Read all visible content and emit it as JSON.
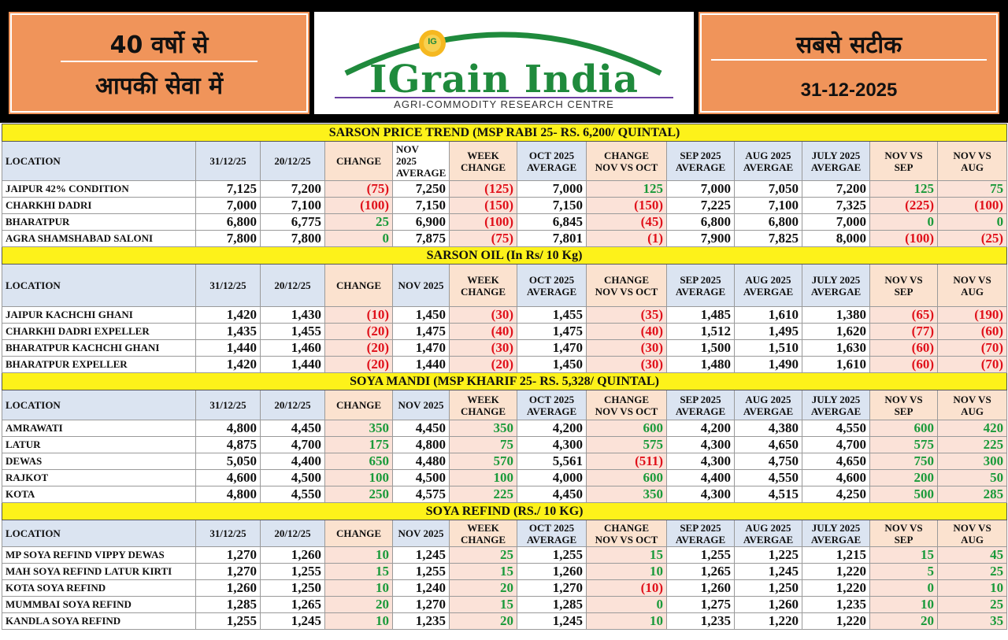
{
  "header": {
    "left_line1": "40 वर्षो से",
    "left_line2": "आपकी सेवा में",
    "brand": "IGrain India",
    "brand_subtitle": "AGRI-COMMODITY RESEARCH CENTRE",
    "logo_badge": "IG",
    "right_tagline": "सबसे सटीक",
    "date": "31-12-2025"
  },
  "colors": {
    "orange_panel": "#f0945a",
    "title_yellow": "#fdf21a",
    "header_blue": "#dbe4f1",
    "change_pink": "#fbe2d8",
    "positive_green": "#1a9a3a",
    "negative_red": "#e0101a",
    "brand_green": "#1f8a3c"
  },
  "sections": [
    {
      "title": "SARSON PRICE TREND (MSP RABI 25- RS. 6,200/ QUINTAL)",
      "headers": [
        "LOCATION",
        "31/12/25",
        "20/12/25",
        "CHANGE",
        "NOV\n2025\nAVERAGE",
        "WEEK\nCHANGE",
        "OCT 2025\nAVERAGE",
        "CHANGE\nNOV VS OCT",
        "SEP 2025\nAVERAGE",
        "AUG 2025\nAVERGAE",
        "JULY 2025\nAVERGAE",
        "NOV VS\nSEP",
        "NOV VS\nAUG"
      ],
      "rows": [
        [
          "JAIPUR 42% CONDITION",
          "7,125",
          "7,200",
          "(75)",
          "7,250",
          "(125)",
          "7,000",
          "125",
          "7,000",
          "7,050",
          "7,200",
          "125",
          "75"
        ],
        [
          "CHARKHI DADRI",
          "7,000",
          "7,100",
          "(100)",
          "7,150",
          "(150)",
          "7,150",
          "(150)",
          "7,225",
          "7,100",
          "7,325",
          "(225)",
          "(100)"
        ],
        [
          "BHARATPUR",
          "6,800",
          "6,775",
          "25",
          "6,900",
          "(100)",
          "6,845",
          "(45)",
          "6,800",
          "6,800",
          "7,000",
          "0",
          "0"
        ],
        [
          "AGRA SHAMSHABAD SALONI",
          "7,800",
          "7,800",
          "0",
          "7,875",
          "(75)",
          "7,801",
          "(1)",
          "7,900",
          "7,825",
          "8,000",
          "(100)",
          "(25)"
        ]
      ]
    },
    {
      "title": "SARSON OIL (In Rs/ 10 Kg)",
      "headers": [
        "LOCATION",
        "31/12/25",
        "20/12/25",
        "CHANGE",
        "NOV 2025",
        "WEEK\nCHANGE",
        "OCT 2025\nAVERAGE",
        "CHANGE\nNOV VS OCT",
        "SEP 2025\nAVERAGE",
        "AUG 2025\nAVERGAE",
        "JULY 2025\nAVERGAE",
        "NOV VS\nSEP",
        "NOV VS\nAUG"
      ],
      "rows": [
        [
          "JAIPUR KACHCHI GHANI",
          "1,420",
          "1,430",
          "(10)",
          "1,450",
          "(30)",
          "1,455",
          "(35)",
          "1,485",
          "1,610",
          "1,380",
          "(65)",
          "(190)"
        ],
        [
          "CHARKHI DADRI EXPELLER",
          "1,435",
          "1,455",
          "(20)",
          "1,475",
          "(40)",
          "1,475",
          "(40)",
          "1,512",
          "1,495",
          "1,620",
          "(77)",
          "(60)"
        ],
        [
          "BHARATPUR KACHCHI GHANI",
          "1,440",
          "1,460",
          "(20)",
          "1,470",
          "(30)",
          "1,470",
          "(30)",
          "1,500",
          "1,510",
          "1,630",
          "(60)",
          "(70)"
        ],
        [
          "BHARATPUR EXPELLER",
          "1,420",
          "1,440",
          "(20)",
          "1,440",
          "(20)",
          "1,450",
          "(30)",
          "1,480",
          "1,490",
          "1,610",
          "(60)",
          "(70)"
        ]
      ]
    },
    {
      "title": "SOYA MANDI (MSP KHARIF 25- RS. 5,328/ QUINTAL)",
      "headers": [
        "LOCATION",
        "31/12/25",
        "20/12/25",
        "CHANGE",
        "NOV 2025",
        "WEEK\nCHANGE",
        "OCT 2025\nAVERAGE",
        "CHANGE\nNOV VS OCT",
        "SEP 2025\nAVERAGE",
        "AUG 2025\nAVERGAE",
        "JULY 2025\nAVERGAE",
        "NOV VS\nSEP",
        "NOV VS\nAUG"
      ],
      "rows": [
        [
          "AMRAWATI",
          "4,800",
          "4,450",
          "350",
          "4,450",
          "350",
          "4,200",
          "600",
          "4,200",
          "4,380",
          "4,550",
          "600",
          "420"
        ],
        [
          "LATUR",
          "4,875",
          "4,700",
          "175",
          "4,800",
          "75",
          "4,300",
          "575",
          "4,300",
          "4,650",
          "4,700",
          "575",
          "225"
        ],
        [
          "DEWAS",
          "5,050",
          "4,400",
          "650",
          "4,480",
          "570",
          "5,561",
          "(511)",
          "4,300",
          "4,750",
          "4,650",
          "750",
          "300"
        ],
        [
          "RAJKOT",
          "4,600",
          "4,500",
          "100",
          "4,500",
          "100",
          "4,000",
          "600",
          "4,400",
          "4,550",
          "4,600",
          "200",
          "50"
        ],
        [
          "KOTA",
          "4,800",
          "4,550",
          "250",
          "4,575",
          "225",
          "4,450",
          "350",
          "4,300",
          "4,515",
          "4,250",
          "500",
          "285"
        ]
      ]
    },
    {
      "title": "SOYA REFIND (RS./ 10 KG)",
      "headers": [
        "LOCATION",
        "31/12/25",
        "20/12/25",
        "CHANGE",
        "NOV 2025",
        "WEEK\nCHANGE",
        "OCT 2025\nAVERAGE",
        "CHANGE\nNOV VS OCT",
        "SEP 2025\nAVERAGE",
        "AUG 2025\nAVERGAE",
        "JULY 2025\nAVERGAE",
        "NOV VS\nSEP",
        "NOV VS\nAUG"
      ],
      "rows": [
        [
          "MP SOYA REFIND VIPPY DEWAS",
          "1,270",
          "1,260",
          "10",
          "1,245",
          "25",
          "1,255",
          "15",
          "1,255",
          "1,225",
          "1,215",
          "15",
          "45"
        ],
        [
          "MAH SOYA REFIND LATUR KIRTI",
          "1,270",
          "1,255",
          "15",
          "1,255",
          "15",
          "1,260",
          "10",
          "1,265",
          "1,245",
          "1,220",
          "5",
          "25"
        ],
        [
          "KOTA SOYA REFIND",
          "1,260",
          "1,250",
          "10",
          "1,240",
          "20",
          "1,270",
          "(10)",
          "1,260",
          "1,250",
          "1,220",
          "0",
          "10"
        ],
        [
          "MUMMBAI SOYA REFIND",
          "1,285",
          "1,265",
          "20",
          "1,270",
          "15",
          "1,285",
          "0",
          "1,275",
          "1,260",
          "1,235",
          "10",
          "25"
        ],
        [
          "KANDLA SOYA REFIND",
          "1,255",
          "1,245",
          "10",
          "1,235",
          "20",
          "1,245",
          "10",
          "1,235",
          "1,220",
          "1,220",
          "20",
          "35"
        ]
      ]
    }
  ]
}
